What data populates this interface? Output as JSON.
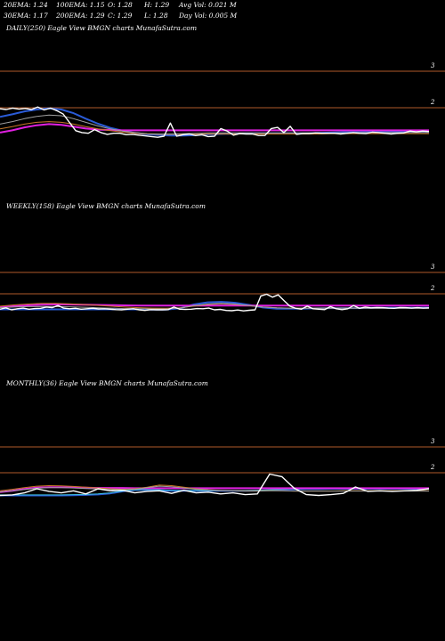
{
  "stats": {
    "ema20": "20EMA: 1.24",
    "ema100": "100EMA: 1.15",
    "open": "O: 1.28",
    "high": "H: 1.29",
    "avg_vol": "Avg Vol: 0.021 M",
    "ema30": "30EMA: 1.17",
    "ema200": "200EMA: 1.29",
    "close": "C: 1.29",
    "low": "L: 1.28",
    "day_vol": "Day Vol: 0.005 M"
  },
  "colors": {
    "background": "#000000",
    "grid": "#b05a2a",
    "price": "#ffffff",
    "ema_blue": "#2a5bd7",
    "ema_magenta": "#e020e0",
    "ema_orange": "#c8782a",
    "ema_gray": "#a0a0a0",
    "ema_cyan": "#40c0e0"
  },
  "chart_data": [
    {
      "type": "line",
      "title": "DAILY(250) Eagle  View  BMGN  charts MunafaSutra.com",
      "yticks": [
        "3",
        "2"
      ],
      "ylim": [
        0.7,
        3.3
      ],
      "series": [
        {
          "role": "price",
          "color": "#ffffff",
          "values": [
            1.97,
            1.95,
            1.99,
            1.96,
            1.98,
            1.95,
            2.02,
            1.94,
            1.99,
            1.92,
            1.83,
            1.6,
            1.37,
            1.32,
            1.3,
            1.4,
            1.32,
            1.27,
            1.3,
            1.3,
            1.26,
            1.27,
            1.25,
            1.23,
            1.21,
            1.19,
            1.22,
            1.58,
            1.22,
            1.26,
            1.28,
            1.24,
            1.26,
            1.21,
            1.22,
            1.43,
            1.36,
            1.25,
            1.29,
            1.28,
            1.28,
            1.24,
            1.24,
            1.43,
            1.46,
            1.32,
            1.49,
            1.27,
            1.29,
            1.29,
            1.31,
            1.3,
            1.3,
            1.3,
            1.28,
            1.3,
            1.32,
            1.3,
            1.29,
            1.33,
            1.32,
            1.3,
            1.28,
            1.3,
            1.31,
            1.36,
            1.34,
            1.36,
            1.35
          ]
        },
        {
          "role": "ema_blue",
          "color": "#2a5bd7",
          "values": [
            1.75,
            1.82,
            1.9,
            1.95,
            1.98,
            1.95,
            1.85,
            1.7,
            1.56,
            1.45,
            1.37,
            1.31,
            1.27,
            1.25,
            1.24,
            1.24,
            1.25,
            1.27,
            1.28,
            1.29,
            1.3,
            1.3,
            1.3,
            1.3,
            1.3,
            1.3,
            1.31,
            1.32,
            1.33,
            1.33,
            1.34,
            1.34,
            1.34,
            1.34,
            1.34,
            1.35
          ]
        },
        {
          "role": "ema_magenta",
          "color": "#e020e0",
          "values": [
            1.32,
            1.38,
            1.46,
            1.52,
            1.55,
            1.53,
            1.48,
            1.43,
            1.4,
            1.39,
            1.38,
            1.38,
            1.38,
            1.38,
            1.38,
            1.38,
            1.38,
            1.38,
            1.38,
            1.38,
            1.38,
            1.38,
            1.38,
            1.38,
            1.38,
            1.38,
            1.38,
            1.38,
            1.38,
            1.38,
            1.38,
            1.38,
            1.38,
            1.38,
            1.38,
            1.38
          ]
        },
        {
          "role": "ema_orange",
          "color": "#c8782a",
          "values": [
            1.42,
            1.48,
            1.55,
            1.6,
            1.62,
            1.6,
            1.55,
            1.48,
            1.42,
            1.37,
            1.33,
            1.3,
            1.28,
            1.27,
            1.27,
            1.27,
            1.27,
            1.28,
            1.28,
            1.28,
            1.28,
            1.28,
            1.28,
            1.28,
            1.28,
            1.28,
            1.28,
            1.29,
            1.29,
            1.29,
            1.29,
            1.29,
            1.29,
            1.29,
            1.29,
            1.29
          ]
        },
        {
          "role": "ema_gray",
          "color": "#a0a0a0",
          "values": [
            1.55,
            1.62,
            1.7,
            1.76,
            1.8,
            1.78,
            1.7,
            1.6,
            1.5,
            1.42,
            1.36,
            1.32,
            1.29,
            1.28,
            1.28,
            1.29,
            1.3,
            1.31,
            1.31,
            1.31,
            1.31,
            1.31,
            1.31,
            1.31,
            1.31,
            1.31,
            1.31,
            1.31,
            1.31,
            1.32,
            1.32,
            1.32,
            1.32,
            1.32,
            1.32,
            1.32
          ]
        }
      ]
    },
    {
      "type": "line",
      "title": "WEEKLY(158) Eagle  View  BMGN  charts MunafaSutra.com",
      "yticks": [
        "3",
        "2"
      ],
      "ylim": [
        0.7,
        3.3
      ],
      "series": [
        {
          "role": "price",
          "color": "#ffffff",
          "values": [
            1.28,
            1.34,
            1.25,
            1.3,
            1.33,
            1.28,
            1.31,
            1.32,
            1.38,
            1.35,
            1.45,
            1.33,
            1.3,
            1.32,
            1.28,
            1.3,
            1.32,
            1.29,
            1.3,
            1.28,
            1.26,
            1.25,
            1.28,
            1.3,
            1.25,
            1.22,
            1.26,
            1.25,
            1.25,
            1.26,
            1.38,
            1.28,
            1.27,
            1.28,
            1.31,
            1.3,
            1.33,
            1.25,
            1.27,
            1.22,
            1.21,
            1.24,
            1.2,
            1.23,
            1.25,
            1.9,
            1.98,
            1.84,
            1.95,
            1.68,
            1.42,
            1.32,
            1.28,
            1.42,
            1.3,
            1.28,
            1.26,
            1.4,
            1.3,
            1.26,
            1.3,
            1.45,
            1.32,
            1.38,
            1.34,
            1.36,
            1.35,
            1.33,
            1.32,
            1.36,
            1.35,
            1.33,
            1.35,
            1.33,
            1.34
          ]
        },
        {
          "role": "ema_blue",
          "color": "#2a5bd7",
          "values": [
            1.27,
            1.27,
            1.27,
            1.27,
            1.27,
            1.27,
            1.27,
            1.27,
            1.27,
            1.27,
            1.27,
            1.26,
            1.26,
            1.32,
            1.5,
            1.6,
            1.62,
            1.58,
            1.48,
            1.36,
            1.3,
            1.3,
            1.31,
            1.32,
            1.33,
            1.33,
            1.33,
            1.34,
            1.34,
            1.34,
            1.34,
            1.35
          ]
        },
        {
          "role": "ema_magenta",
          "color": "#e020e0",
          "values": [
            1.38,
            1.42,
            1.46,
            1.49,
            1.5,
            1.5,
            1.49,
            1.48,
            1.47,
            1.46,
            1.45,
            1.45,
            1.45,
            1.45,
            1.45,
            1.45,
            1.45,
            1.45,
            1.45,
            1.45,
            1.45,
            1.45,
            1.45,
            1.45,
            1.45,
            1.45,
            1.45,
            1.45,
            1.45,
            1.45,
            1.45,
            1.45
          ]
        },
        {
          "role": "ema_orange",
          "color": "#c8782a",
          "values": [
            1.42,
            1.48,
            1.52,
            1.55,
            1.55,
            1.53,
            1.5,
            1.46,
            1.42,
            1.38,
            1.35,
            1.33,
            1.32,
            1.34,
            1.42,
            1.5,
            1.53,
            1.5,
            1.44,
            1.38,
            1.34,
            1.33,
            1.33,
            1.33,
            1.33,
            1.33,
            1.33,
            1.33,
            1.33,
            1.33,
            1.33,
            1.33
          ]
        },
        {
          "role": "ema_gray",
          "color": "#a0a0a0",
          "values": [
            1.35,
            1.38,
            1.4,
            1.41,
            1.4,
            1.39,
            1.37,
            1.35,
            1.33,
            1.31,
            1.3,
            1.29,
            1.29,
            1.33,
            1.44,
            1.52,
            1.55,
            1.52,
            1.45,
            1.38,
            1.34,
            1.32,
            1.32,
            1.32,
            1.32,
            1.32,
            1.32,
            1.32,
            1.32,
            1.32,
            1.32,
            1.32
          ]
        }
      ]
    },
    {
      "type": "line",
      "title": "MONTHLY(36) Eagle  View  BMGN  charts MunafaSutra.com",
      "yticks": [
        "3",
        "2"
      ],
      "ylim": [
        0.7,
        3.3
      ],
      "series": [
        {
          "role": "price",
          "color": "#ffffff",
          "values": [
            1.12,
            1.14,
            1.22,
            1.38,
            1.28,
            1.22,
            1.3,
            1.18,
            1.38,
            1.3,
            1.32,
            1.22,
            1.28,
            1.3,
            1.2,
            1.32,
            1.22,
            1.25,
            1.18,
            1.22,
            1.15,
            1.18,
            1.95,
            1.85,
            1.4,
            1.15,
            1.12,
            1.15,
            1.2,
            1.45,
            1.28,
            1.3,
            1.28,
            1.3,
            1.32,
            1.38
          ]
        },
        {
          "role": "ema_blue",
          "color": "#2a5bd7",
          "values": [
            1.12,
            1.12,
            1.12,
            1.12,
            1.12,
            1.12,
            1.13,
            1.14,
            1.16,
            1.2,
            1.28,
            1.33,
            1.34,
            1.32,
            1.3,
            1.3,
            1.3,
            1.3,
            1.3,
            1.3,
            1.3,
            1.31,
            1.33,
            1.35,
            1.36,
            1.37,
            1.37,
            1.38,
            1.38,
            1.38,
            1.38,
            1.38,
            1.38,
            1.38,
            1.38,
            1.38
          ]
        },
        {
          "role": "ema_cyan",
          "color": "#40c0e0",
          "values": [
            1.14,
            1.14,
            1.14,
            1.14,
            1.14,
            1.14,
            1.15,
            1.16,
            1.18,
            1.22,
            1.29,
            1.34,
            1.35,
            1.34,
            1.32,
            1.31,
            1.31,
            1.31,
            1.31,
            1.31,
            1.31,
            1.32,
            1.34,
            1.36,
            1.37,
            1.38,
            1.38,
            1.39,
            1.39,
            1.39,
            1.39,
            1.39,
            1.39,
            1.39,
            1.39,
            1.39
          ]
        },
        {
          "role": "ema_magenta",
          "color": "#e020e0",
          "values": [
            1.25,
            1.3,
            1.37,
            1.42,
            1.44,
            1.44,
            1.43,
            1.42,
            1.41,
            1.41,
            1.41,
            1.4,
            1.4,
            1.4,
            1.4,
            1.4,
            1.4,
            1.4,
            1.4,
            1.4,
            1.4,
            1.4,
            1.4,
            1.4,
            1.4,
            1.4,
            1.4,
            1.4,
            1.4,
            1.4,
            1.4,
            1.4,
            1.4,
            1.4,
            1.4,
            1.4
          ]
        },
        {
          "role": "ema_orange",
          "color": "#c8782a",
          "values": [
            1.3,
            1.36,
            1.42,
            1.48,
            1.5,
            1.49,
            1.47,
            1.44,
            1.41,
            1.38,
            1.36,
            1.38,
            1.44,
            1.52,
            1.5,
            1.44,
            1.38,
            1.34,
            1.32,
            1.31,
            1.3,
            1.3,
            1.31,
            1.3,
            1.29,
            1.29,
            1.29,
            1.29,
            1.3,
            1.3,
            1.3,
            1.3,
            1.3,
            1.3,
            1.3,
            1.3
          ]
        },
        {
          "role": "ema_gray",
          "color": "#a0a0a0",
          "values": [
            1.26,
            1.3,
            1.35,
            1.4,
            1.42,
            1.42,
            1.41,
            1.39,
            1.37,
            1.35,
            1.34,
            1.36,
            1.42,
            1.48,
            1.46,
            1.41,
            1.36,
            1.33,
            1.31,
            1.3,
            1.29,
            1.29,
            1.3,
            1.3,
            1.29,
            1.29,
            1.29,
            1.29,
            1.29,
            1.29,
            1.29,
            1.29,
            1.29,
            1.29,
            1.29,
            1.29
          ]
        }
      ]
    }
  ]
}
